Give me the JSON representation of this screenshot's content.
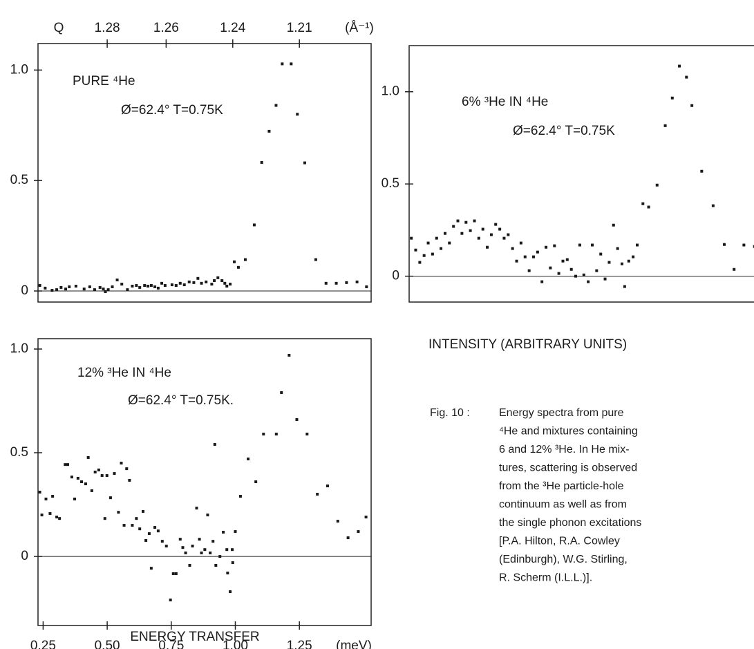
{
  "chart_data": [
    {
      "type": "scatter",
      "annotations": [
        "PURE ⁴He",
        "Ø=62.4°  T=0.75K"
      ],
      "color": "#1a1a1a",
      "zero_line": true,
      "xlim": [
        0.23,
        1.53
      ],
      "ylim": [
        -0.05,
        1.12
      ],
      "yticks": [
        0,
        0.5,
        {
          "value": 1,
          "label": "1.0"
        }
      ],
      "x2label": "Q",
      "x2unit": "(Å⁻¹)",
      "x2ticks": [
        {
          "value": 0.5,
          "label": "1.28"
        },
        {
          "value": 0.73,
          "label": "1.26"
        },
        {
          "value": 0.99,
          "label": "1.24"
        },
        {
          "value": 1.25,
          "label": "1.21"
        }
      ],
      "x": [
        0.237,
        0.258,
        0.285,
        0.303,
        0.32,
        0.338,
        0.352,
        0.378,
        0.41,
        0.432,
        0.451,
        0.472,
        0.485,
        0.493,
        0.504,
        0.52,
        0.539,
        0.557,
        0.579,
        0.598,
        0.614,
        0.627,
        0.646,
        0.659,
        0.672,
        0.686,
        0.699,
        0.713,
        0.726,
        0.753,
        0.769,
        0.785,
        0.801,
        0.82,
        0.838,
        0.854,
        0.868,
        0.886,
        0.908,
        0.918,
        0.932,
        0.948,
        0.959,
        0.967,
        0.98,
        0.996,
        1.012,
        1.039,
        1.074,
        1.103,
        1.132,
        1.159,
        1.183,
        1.218,
        1.242,
        1.271,
        1.314,
        1.354,
        1.394,
        1.434,
        1.475,
        1.512
      ],
      "values": [
        0.025,
        0.013,
        0.003,
        0.006,
        0.016,
        0.009,
        0.019,
        0.022,
        0.009,
        0.019,
        0.006,
        0.016,
        0.009,
        -0.003,
        0.006,
        0.019,
        0.05,
        0.031,
        0.006,
        0.022,
        0.025,
        0.016,
        0.025,
        0.022,
        0.025,
        0.019,
        0.013,
        0.035,
        0.025,
        0.028,
        0.025,
        0.035,
        0.028,
        0.041,
        0.038,
        0.057,
        0.035,
        0.041,
        0.031,
        0.047,
        0.06,
        0.047,
        0.035,
        0.022,
        0.031,
        0.132,
        0.107,
        0.142,
        0.299,
        0.582,
        0.723,
        0.84,
        1.028,
        1.028,
        0.8,
        0.58,
        0.142,
        0.035,
        0.035,
        0.038,
        0.041,
        0.019
      ]
    },
    {
      "type": "scatter",
      "annotations": [
        "6% ³He IN ⁴He",
        "Ø=62.4°  T=0.75K"
      ],
      "color": "#1a1a1a",
      "zero_line": true,
      "xlim": [
        0.19,
        1.48
      ],
      "ylim": [
        -0.14,
        1.25
      ],
      "yticks": [
        0,
        0.5,
        {
          "value": 1,
          "label": "1.0"
        }
      ],
      "x": [
        0.198,
        0.214,
        0.229,
        0.245,
        0.26,
        0.276,
        0.291,
        0.307,
        0.322,
        0.338,
        0.353,
        0.369,
        0.384,
        0.399,
        0.415,
        0.43,
        0.446,
        0.461,
        0.477,
        0.492,
        0.508,
        0.523,
        0.539,
        0.554,
        0.57,
        0.585,
        0.601,
        0.616,
        0.631,
        0.647,
        0.662,
        0.678,
        0.693,
        0.709,
        0.724,
        0.74,
        0.755,
        0.771,
        0.786,
        0.802,
        0.817,
        0.832,
        0.848,
        0.863,
        0.879,
        0.894,
        0.91,
        0.925,
        0.941,
        0.956,
        0.972,
        0.982,
        0.997,
        1.013,
        1.028,
        1.049,
        1.07,
        1.101,
        1.131,
        1.157,
        1.183,
        1.209,
        1.229,
        1.265,
        1.307,
        1.348,
        1.384,
        1.42,
        1.459
      ],
      "values": [
        0.206,
        0.142,
        0.075,
        0.112,
        0.18,
        0.12,
        0.206,
        0.15,
        0.232,
        0.18,
        0.27,
        0.3,
        0.232,
        0.292,
        0.247,
        0.3,
        0.206,
        0.255,
        0.157,
        0.225,
        0.281,
        0.255,
        0.206,
        0.225,
        0.15,
        0.082,
        0.18,
        0.105,
        0.03,
        0.105,
        0.131,
        -0.03,
        0.157,
        0.045,
        0.165,
        0.015,
        0.082,
        0.09,
        0.037,
        0,
        0.169,
        0.007,
        -0.03,
        0.169,
        0.03,
        0.12,
        -0.015,
        0.075,
        0.277,
        0.15,
        0.067,
        -0.056,
        0.082,
        0.105,
        0.169,
        0.393,
        0.375,
        0.494,
        0.816,
        0.966,
        1.139,
        1.079,
        0.925,
        0.569,
        0.382,
        0.172,
        0.037,
        0.169,
        0.161
      ]
    },
    {
      "type": "scatter",
      "annotations": [
        "12% ³He IN ⁴He",
        "Ø=62.4°  T=0.75K."
      ],
      "color": "#1a1a1a",
      "zero_line": true,
      "xlim": [
        0.23,
        1.53
      ],
      "ylim": [
        -0.333,
        1.05
      ],
      "yticks": [
        0,
        0.5,
        {
          "value": 1,
          "label": "1.0"
        }
      ],
      "xunit": "(meV)",
      "xticks": [
        0.25,
        {
          "value": 0.5,
          "label": "0.50"
        },
        0.75,
        {
          "value": 1,
          "label": "1.00"
        },
        1.25
      ],
      "x": [
        0.237,
        0.245,
        0.261,
        0.277,
        0.287,
        0.303,
        0.314,
        0.336,
        0.346,
        0.362,
        0.373,
        0.386,
        0.4,
        0.416,
        0.426,
        0.44,
        0.453,
        0.467,
        0.48,
        0.491,
        0.499,
        0.513,
        0.528,
        0.544,
        0.555,
        0.566,
        0.576,
        0.587,
        0.598,
        0.614,
        0.627,
        0.64,
        0.651,
        0.664,
        0.672,
        0.686,
        0.699,
        0.715,
        0.731,
        0.747,
        0.758,
        0.769,
        0.785,
        0.795,
        0.806,
        0.822,
        0.833,
        0.849,
        0.86,
        0.868,
        0.881,
        0.892,
        0.902,
        0.913,
        0.924,
        0.94,
        0.953,
        0.967,
        0.92,
        0.988,
        0.97,
        0.98,
        0.99,
        1.0,
        1.02,
        1.05,
        1.08,
        1.11,
        1.16,
        1.18,
        1.21,
        1.24,
        1.28,
        1.32,
        1.36,
        1.4,
        1.44,
        1.48,
        1.51
      ],
      "values": [
        0.31,
        0.2,
        0.277,
        0.207,
        0.29,
        0.19,
        0.183,
        0.443,
        0.443,
        0.383,
        0.277,
        0.377,
        0.36,
        0.35,
        0.477,
        0.317,
        0.407,
        0.417,
        0.39,
        0.183,
        0.39,
        0.283,
        0.4,
        0.213,
        0.45,
        0.15,
        0.423,
        0.367,
        0.15,
        0.183,
        0.133,
        0.217,
        0.077,
        0.11,
        -0.057,
        0.14,
        0.123,
        0.073,
        0.05,
        -0.21,
        -0.083,
        -0.083,
        0.083,
        0.043,
        0.017,
        -0.043,
        0.05,
        0.233,
        0.083,
        0.017,
        0.033,
        0.2,
        0.017,
        0.073,
        -0.043,
        0,
        0.117,
        0.033,
        0.54,
        0.033,
        -0.08,
        -0.17,
        -0.03,
        0.12,
        0.29,
        0.47,
        0.36,
        0.59,
        0.59,
        0.79,
        0.97,
        0.66,
        0.59,
        0.3,
        0.34,
        0.17,
        0.09,
        0.12,
        0.19
      ]
    }
  ],
  "ylabel": "INTENSITY   (ARBITRARY  UNITS)",
  "xlabel": "ENERGY   TRANSFER",
  "caption": {
    "label": "Fig. 10 :",
    "lines": [
      "Energy spectra from pure",
      "⁴He and mixtures containing",
      "6 and 12% ³He. In He mix-",
      "tures, scattering is observed",
      "from the ³He particle-hole",
      "continuum as well as from",
      "the single phonon excitations",
      "[P.A. Hilton, R.A. Cowley",
      "(Edinburgh), W.G. Stirling,",
      "R. Scherm (I.L.L.)]."
    ]
  }
}
